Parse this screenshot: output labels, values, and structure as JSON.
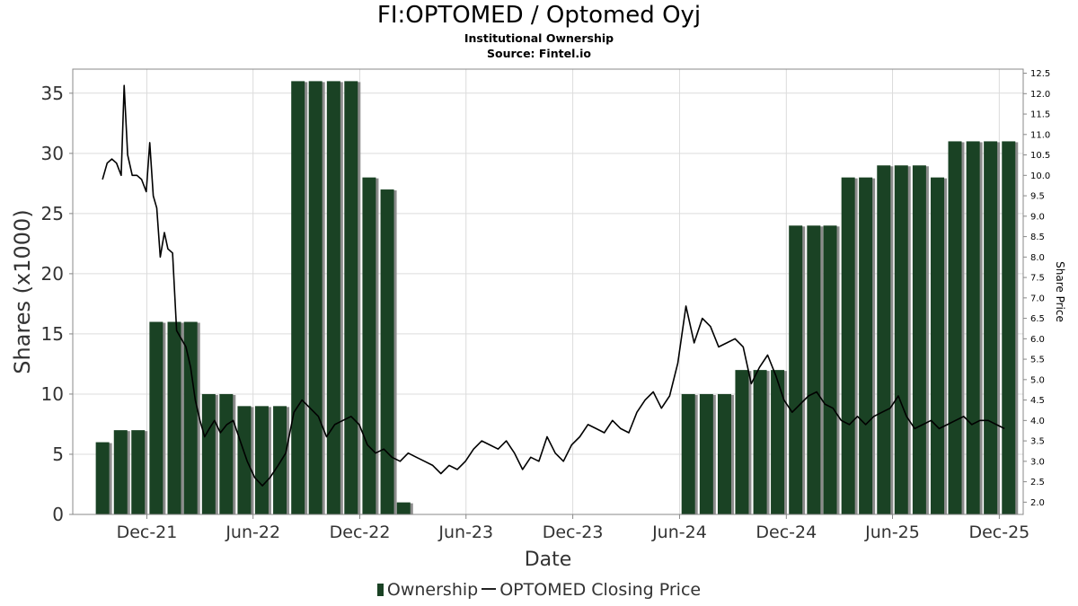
{
  "header": {
    "title": "FI:OPTOMED / Optomed Oyj",
    "subtitle": "Institutional Ownership",
    "source": "Source: Fintel.io"
  },
  "legend": {
    "ownership": "Ownership",
    "price": "OPTOMED Closing Price"
  },
  "colors": {
    "bar": "#1a4224",
    "bar_shadow": "#8c8c8c",
    "line": "#000000",
    "grid": "#dcdcdc"
  },
  "chart_data": {
    "type": "bar",
    "xlabel": "Date",
    "ylabel": "Shares (x1000)",
    "y2label": "Share Price",
    "ylim": [
      0,
      37
    ],
    "y2lim": [
      1.7,
      12.6
    ],
    "yticks": [
      0,
      5,
      10,
      15,
      20,
      25,
      30,
      35
    ],
    "y2ticks": [
      "2.0",
      "2.5",
      "3.0",
      "3.5",
      "4.0",
      "4.5",
      "5.0",
      "5.5",
      "6.0",
      "6.5",
      "7.0",
      "7.5",
      "8.0",
      "8.5",
      "9.0",
      "9.5",
      "10.0",
      "10.5",
      "11.0",
      "11.5",
      "12.0",
      "12.5"
    ],
    "xticks": [
      "Dec-21",
      "Jun-22",
      "Dec-22",
      "Jun-23",
      "Dec-23",
      "Jun-24",
      "Dec-24",
      "Jun-25",
      "Dec-25"
    ],
    "grid": true,
    "legend_position": "bottom",
    "series": [
      {
        "name": "Ownership",
        "type": "bar",
        "dates": [
          "2021-09-30",
          "2021-10-31",
          "2021-11-30",
          "2021-12-31",
          "2022-01-31",
          "2022-02-28",
          "2022-03-31",
          "2022-04-30",
          "2022-05-31",
          "2022-06-30",
          "2022-07-31",
          "2022-08-31",
          "2022-09-30",
          "2022-10-31",
          "2022-11-30",
          "2022-12-31",
          "2023-01-31",
          "2023-02-28",
          "2023-03-31",
          "2024-06-30",
          "2024-07-31",
          "2024-08-31",
          "2024-09-30",
          "2024-10-31",
          "2024-11-30",
          "2024-12-31",
          "2025-01-31",
          "2025-02-28",
          "2025-03-31",
          "2025-04-30",
          "2025-05-31",
          "2025-06-30",
          "2025-07-31",
          "2025-08-31",
          "2025-09-30",
          "2025-10-31",
          "2025-11-30",
          "2025-12-31"
        ],
        "values": [
          6,
          7,
          7,
          16,
          16,
          16,
          10,
          10,
          9,
          9,
          9,
          36,
          36,
          36,
          36,
          28,
          27,
          1,
          0,
          10,
          10,
          10,
          12,
          12,
          12,
          24,
          24,
          24,
          28,
          28,
          29,
          29,
          29,
          28,
          31,
          31,
          31,
          31
        ]
      },
      {
        "name": "OPTOMED Closing Price",
        "type": "line",
        "x": [
          "2021-09-30",
          "2021-10-08",
          "2021-10-16",
          "2021-10-24",
          "2021-11-01",
          "2021-11-06",
          "2021-11-12",
          "2021-11-20",
          "2021-11-28",
          "2021-12-06",
          "2021-12-14",
          "2021-12-20",
          "2021-12-26",
          "2022-01-01",
          "2022-01-07",
          "2022-01-14",
          "2022-01-20",
          "2022-01-28",
          "2022-02-04",
          "2022-02-12",
          "2022-02-20",
          "2022-02-28",
          "2022-03-08",
          "2022-03-16",
          "2022-03-24",
          "2022-04-01",
          "2022-04-10",
          "2022-04-20",
          "2022-05-01",
          "2022-05-12",
          "2022-05-24",
          "2022-06-05",
          "2022-06-18",
          "2022-07-01",
          "2022-07-14",
          "2022-07-28",
          "2022-08-10",
          "2022-08-24",
          "2022-09-07",
          "2022-09-21",
          "2022-10-05",
          "2022-10-19",
          "2022-11-02",
          "2022-11-16",
          "2022-11-30",
          "2022-12-14",
          "2022-12-28",
          "2023-01-11",
          "2023-01-25",
          "2023-02-08",
          "2023-02-22",
          "2023-03-08",
          "2023-03-22",
          "2023-04-05",
          "2023-04-19",
          "2023-05-03",
          "2023-05-17",
          "2023-05-31",
          "2023-06-14",
          "2023-06-28",
          "2023-07-12",
          "2023-07-26",
          "2023-08-09",
          "2023-08-23",
          "2023-09-06",
          "2023-09-20",
          "2023-10-04",
          "2023-10-18",
          "2023-11-01",
          "2023-11-15",
          "2023-11-29",
          "2023-12-13",
          "2023-12-27",
          "2024-01-10",
          "2024-01-24",
          "2024-02-07",
          "2024-02-21",
          "2024-03-06",
          "2024-03-20",
          "2024-04-03",
          "2024-04-17",
          "2024-05-01",
          "2024-05-15",
          "2024-05-29",
          "2024-06-12",
          "2024-06-26",
          "2024-07-10",
          "2024-07-24",
          "2024-08-07",
          "2024-08-21",
          "2024-09-04",
          "2024-09-18",
          "2024-10-02",
          "2024-10-16",
          "2024-10-30",
          "2024-11-13",
          "2024-11-27",
          "2024-12-11",
          "2024-12-25",
          "2025-01-08",
          "2025-01-22",
          "2025-02-05",
          "2025-02-19",
          "2025-03-05",
          "2025-03-19",
          "2025-04-02",
          "2025-04-16",
          "2025-04-30",
          "2025-05-14",
          "2025-05-28",
          "2025-06-11",
          "2025-06-25",
          "2025-07-09",
          "2025-07-23",
          "2025-08-06",
          "2025-08-20",
          "2025-09-03",
          "2025-09-17",
          "2025-10-01",
          "2025-10-15",
          "2025-10-29",
          "2025-11-12",
          "2025-11-26",
          "2025-12-10",
          "2025-12-24"
        ],
        "y": [
          9.9,
          10.3,
          10.4,
          10.3,
          10.0,
          12.2,
          10.5,
          10.0,
          10.0,
          9.9,
          9.6,
          10.8,
          9.5,
          9.2,
          8.0,
          8.6,
          8.2,
          8.1,
          6.2,
          6.0,
          5.8,
          5.3,
          4.5,
          4.0,
          3.6,
          3.8,
          4.0,
          3.7,
          3.9,
          4.0,
          3.5,
          3.0,
          2.6,
          2.4,
          2.6,
          2.9,
          3.2,
          4.2,
          4.5,
          4.3,
          4.1,
          3.6,
          3.9,
          4.0,
          4.1,
          3.9,
          3.4,
          3.2,
          3.3,
          3.1,
          3.0,
          3.2,
          3.1,
          3.0,
          2.9,
          2.7,
          2.9,
          2.8,
          3.0,
          3.3,
          3.5,
          3.4,
          3.3,
          3.5,
          3.2,
          2.8,
          3.1,
          3.0,
          3.6,
          3.2,
          3.0,
          3.4,
          3.6,
          3.9,
          3.8,
          3.7,
          4.0,
          3.8,
          3.7,
          4.2,
          4.5,
          4.7,
          4.3,
          4.6,
          5.4,
          6.8,
          5.9,
          6.5,
          6.3,
          5.8,
          5.9,
          6.0,
          5.8,
          4.9,
          5.3,
          5.6,
          5.1,
          4.5,
          4.2,
          4.4,
          4.6,
          4.7,
          4.4,
          4.3,
          4.0,
          3.9,
          4.1,
          3.9,
          4.1,
          4.2,
          4.3,
          4.6,
          4.1,
          3.8,
          3.9,
          4.0,
          3.8,
          3.9,
          4.0,
          4.1,
          3.9,
          4.0,
          4.0,
          3.9,
          3.8
        ]
      }
    ]
  }
}
